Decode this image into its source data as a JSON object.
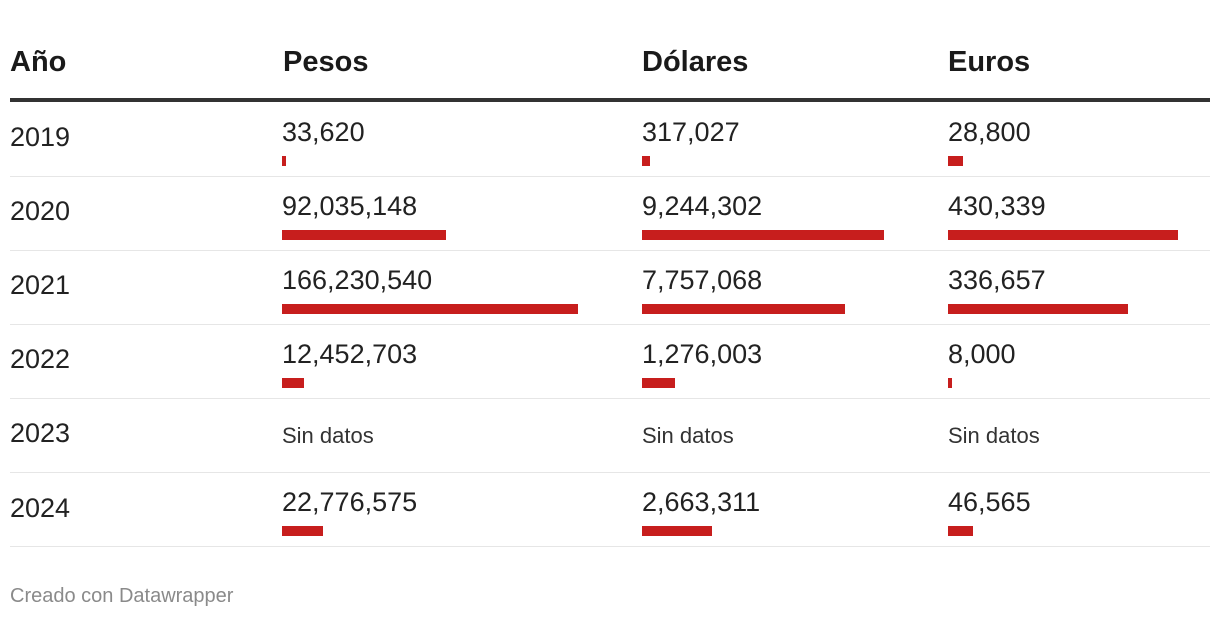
{
  "header": {
    "year": "Año",
    "pesos": "Pesos",
    "dolares": "Dólares",
    "euros": "Euros"
  },
  "footer": "Creado con Datawrapper",
  "no_data_label": "Sin datos",
  "colors": {
    "bar": "#c71e1d",
    "rule": "#333333"
  },
  "chart_data": {
    "type": "table",
    "columns": [
      "Año",
      "Pesos",
      "Dólares",
      "Euros"
    ],
    "rows": [
      {
        "year": "2019",
        "pesos": "33,620",
        "dolares": "317,027",
        "euros": "28,800"
      },
      {
        "year": "2020",
        "pesos": "92,035,148",
        "dolares": "9,244,302",
        "euros": "430,339"
      },
      {
        "year": "2021",
        "pesos": "166,230,540",
        "dolares": "7,757,068",
        "euros": "336,657"
      },
      {
        "year": "2022",
        "pesos": "12,452,703",
        "dolares": "1,276,003",
        "euros": "8,000"
      },
      {
        "year": "2023",
        "pesos": null,
        "dolares": null,
        "euros": null
      },
      {
        "year": "2024",
        "pesos": "22,776,575",
        "dolares": "2,663,311",
        "euros": "46,565"
      }
    ]
  }
}
